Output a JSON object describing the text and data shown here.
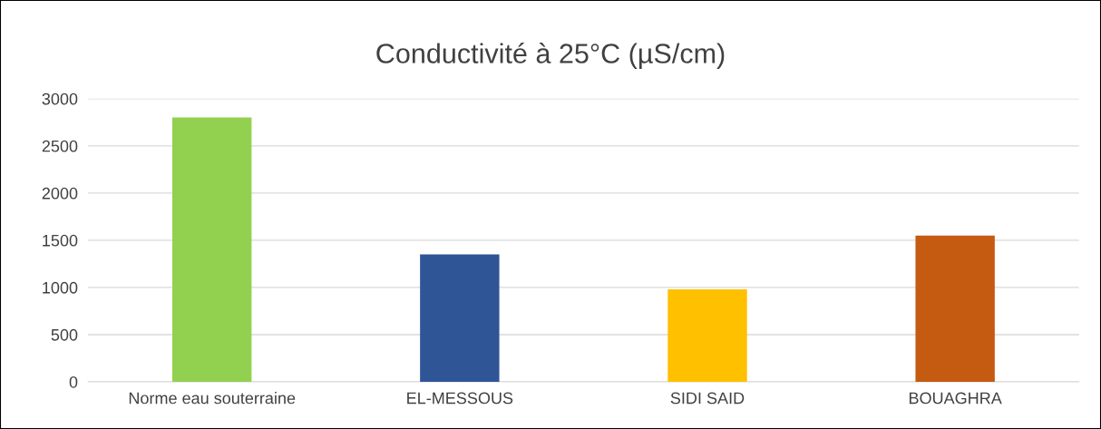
{
  "chart_data": {
    "type": "bar",
    "title": "Conductivité à 25°C (µS/cm)",
    "categories": [
      "Norme eau souterraine",
      "EL-MESSOUS",
      "SIDI SAID",
      "BOUAGHRA"
    ],
    "values": [
      2800,
      1350,
      980,
      1550
    ],
    "colors": [
      "#92d050",
      "#2f5597",
      "#ffc000",
      "#c55a11"
    ],
    "ylim": [
      0,
      3000
    ],
    "yticks": [
      0,
      500,
      1000,
      1500,
      2000,
      2500,
      3000
    ],
    "grid": "y",
    "legend": false
  }
}
